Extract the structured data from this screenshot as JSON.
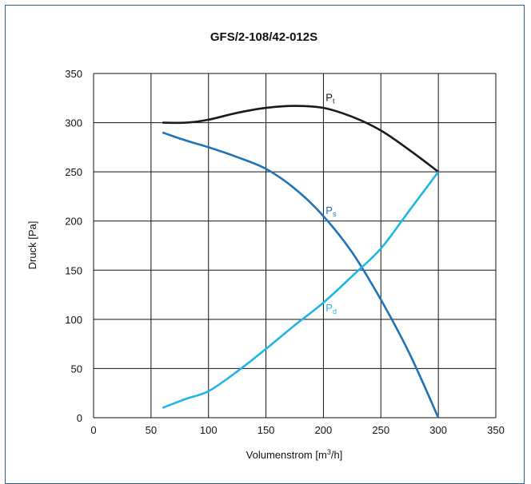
{
  "chart_data": {
    "type": "line",
    "title": "GFS/2-108/42-012S",
    "xlabel": "Volumenstrom [m³/h]",
    "xlabel_parts": {
      "before": "Volumenstrom [m",
      "sup": "3",
      "after": "/h]"
    },
    "ylabel": "Druck [Pa]",
    "xlim": [
      0,
      350
    ],
    "ylim": [
      0,
      350
    ],
    "xticks": [
      0,
      50,
      100,
      150,
      200,
      250,
      300,
      350
    ],
    "yticks": [
      0,
      50,
      100,
      150,
      200,
      250,
      300,
      350
    ],
    "grid": true,
    "series": [
      {
        "name": "Pt",
        "label_main": "P",
        "label_sub": "t",
        "color": "#1a1a1a",
        "label_at": {
          "x": 202,
          "y": 322
        },
        "points": [
          [
            60,
            300
          ],
          [
            80,
            300
          ],
          [
            100,
            303
          ],
          [
            125,
            310
          ],
          [
            150,
            315
          ],
          [
            175,
            317
          ],
          [
            200,
            315
          ],
          [
            225,
            306
          ],
          [
            250,
            292
          ],
          [
            275,
            272
          ],
          [
            300,
            250
          ]
        ]
      },
      {
        "name": "Ps",
        "label_main": "P",
        "label_sub": "s",
        "color": "#1f73b7",
        "label_at": {
          "x": 202,
          "y": 207
        },
        "points": [
          [
            60,
            290
          ],
          [
            80,
            282
          ],
          [
            100,
            275
          ],
          [
            125,
            265
          ],
          [
            150,
            253
          ],
          [
            175,
            233
          ],
          [
            200,
            205
          ],
          [
            225,
            168
          ],
          [
            250,
            120
          ],
          [
            275,
            65
          ],
          [
            300,
            0
          ]
        ]
      },
      {
        "name": "Pd",
        "label_main": "P",
        "label_sub": "d",
        "color": "#1fb6e6",
        "label_at": {
          "x": 202,
          "y": 108
        },
        "points": [
          [
            60,
            10
          ],
          [
            80,
            19
          ],
          [
            100,
            27
          ],
          [
            125,
            47
          ],
          [
            150,
            70
          ],
          [
            175,
            94
          ],
          [
            200,
            117
          ],
          [
            225,
            144
          ],
          [
            250,
            172
          ],
          [
            275,
            211
          ],
          [
            300,
            250
          ]
        ]
      }
    ]
  }
}
